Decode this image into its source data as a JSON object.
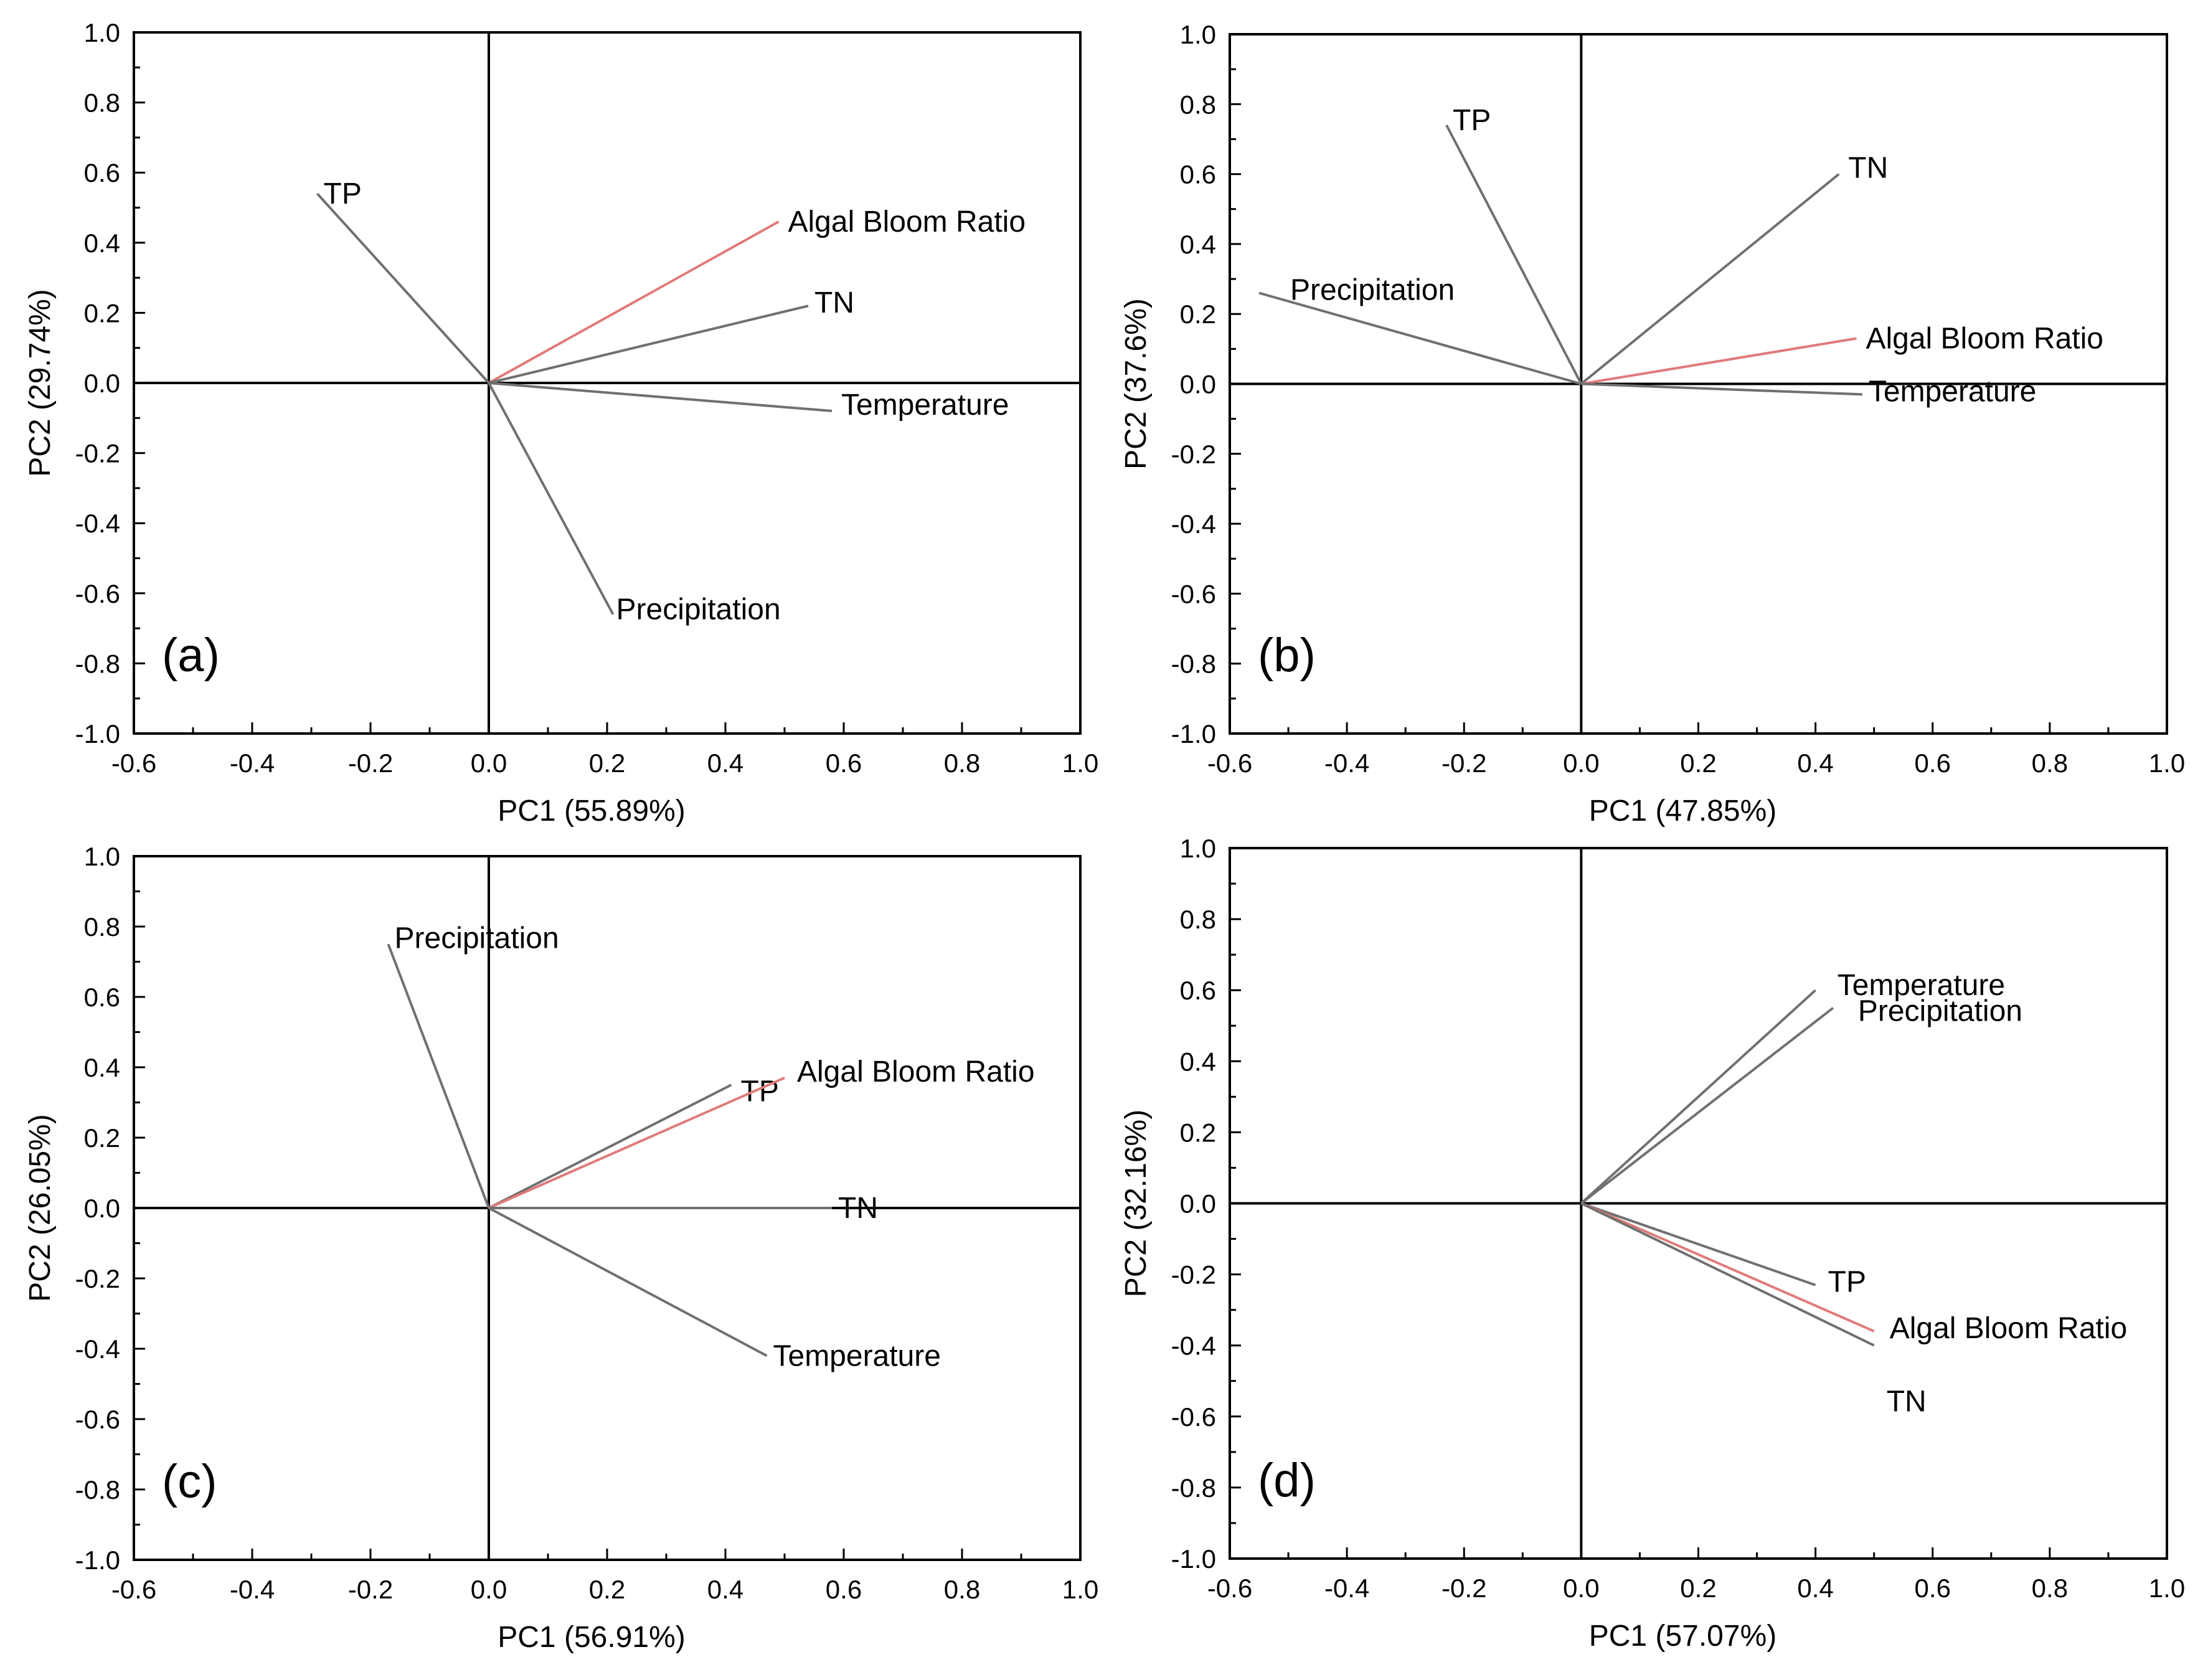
{
  "chart_data": [
    {
      "type": "scatter",
      "panel": "(a)",
      "xlabel": "PC1 (55.89%)",
      "ylabel": "PC2 (29.74%)",
      "xlim": [
        -0.6,
        1.0
      ],
      "ylim": [
        -1.0,
        1.0
      ],
      "xticks": [
        "-0.6",
        "-0.4",
        "-0.2",
        "0.0",
        "0.2",
        "0.4",
        "0.6",
        "0.8",
        "1.0"
      ],
      "yticks": [
        "1.0",
        "0.8",
        "0.6",
        "0.4",
        "0.2",
        "0.0",
        "-0.2",
        "-0.4",
        "-0.6",
        "-0.8",
        "-1.0"
      ],
      "vectors": [
        {
          "name": "TP",
          "x": -0.29,
          "y": 0.54,
          "color": "#707070"
        },
        {
          "name": "Algal Bloom Ratio",
          "x": 0.49,
          "y": 0.46,
          "color": "#e07a7a"
        },
        {
          "name": "TN",
          "x": 0.54,
          "y": 0.22,
          "color": "#707070"
        },
        {
          "name": "Temperature",
          "x": 0.58,
          "y": -0.08,
          "color": "#707070"
        },
        {
          "name": "Precipitation",
          "x": 0.21,
          "y": -0.66,
          "color": "#707070"
        }
      ]
    },
    {
      "type": "scatter",
      "panel": "(b)",
      "xlabel": "PC1 (47.85%)",
      "ylabel": "PC2 (37.6%)",
      "xlim": [
        -0.6,
        1.0
      ],
      "ylim": [
        -1.0,
        1.0
      ],
      "xticks": [
        "-0.6",
        "-0.4",
        "-0.2",
        "0.0",
        "0.2",
        "0.4",
        "0.6",
        "0.8",
        "1.0"
      ],
      "yticks": [
        "1.0",
        "0.8",
        "0.6",
        "0.4",
        "0.2",
        "0.0",
        "-0.2",
        "-0.4",
        "-0.6",
        "-0.8",
        "-1.0"
      ],
      "vectors": [
        {
          "name": "TP",
          "x": -0.23,
          "y": 0.74,
          "color": "#707070"
        },
        {
          "name": "TN",
          "x": 0.44,
          "y": 0.6,
          "color": "#707070"
        },
        {
          "name": "Precipitation",
          "x": -0.55,
          "y": 0.26,
          "color": "#707070"
        },
        {
          "name": "Algal Bloom Ratio",
          "x": 0.47,
          "y": 0.13,
          "color": "#e07a7a"
        },
        {
          "name": "Temperature",
          "x": 0.48,
          "y": -0.03,
          "color": "#707070"
        }
      ]
    },
    {
      "type": "scatter",
      "panel": "(c)",
      "xlabel": "PC1 (56.91%)",
      "ylabel": "PC2 (26.05%)",
      "xlim": [
        -0.6,
        1.0
      ],
      "ylim": [
        -1.0,
        1.0
      ],
      "xticks": [
        "-0.6",
        "-0.4",
        "-0.2",
        "0.0",
        "0.2",
        "0.4",
        "0.6",
        "0.8",
        "1.0"
      ],
      "yticks": [
        "1.0",
        "0.8",
        "0.6",
        "0.4",
        "0.2",
        "0.0",
        "-0.2",
        "-0.4",
        "-0.6",
        "-0.8",
        "-1.0"
      ],
      "vectors": [
        {
          "name": "Precipitation",
          "x": -0.17,
          "y": 0.75,
          "color": "#707070"
        },
        {
          "name": "TP",
          "x": 0.41,
          "y": 0.35,
          "color": "#707070"
        },
        {
          "name": "Algal Bloom Ratio",
          "x": 0.5,
          "y": 0.37,
          "color": "#e07a7a"
        },
        {
          "name": "TN",
          "x": 0.58,
          "y": 0.0,
          "color": "#707070"
        },
        {
          "name": "Temperature",
          "x": 0.47,
          "y": -0.42,
          "color": "#707070"
        }
      ]
    },
    {
      "type": "scatter",
      "panel": "(d)",
      "xlabel": "PC1 (57.07%)",
      "ylabel": "PC2 (32.16%)",
      "xlim": [
        -0.6,
        1.0
      ],
      "ylim": [
        -1.0,
        1.0
      ],
      "xticks": [
        "-0.6",
        "-0.4",
        "-0.2",
        "0.0",
        "0.2",
        "0.4",
        "0.6",
        "0.8",
        "1.0"
      ],
      "yticks": [
        "1.0",
        "0.8",
        "0.6",
        "0.4",
        "0.2",
        "0.0",
        "-0.2",
        "-0.4",
        "-0.6",
        "-0.8",
        "-1.0"
      ],
      "vectors": [
        {
          "name": "Temperature",
          "x": 0.4,
          "y": 0.6,
          "color": "#707070"
        },
        {
          "name": "Precipitation",
          "x": 0.43,
          "y": 0.55,
          "color": "#707070"
        },
        {
          "name": "TP",
          "x": 0.4,
          "y": -0.23,
          "color": "#707070"
        },
        {
          "name": "Algal Bloom Ratio",
          "x": 0.5,
          "y": -0.36,
          "color": "#e07a7a"
        },
        {
          "name": "TN",
          "x": 0.5,
          "y": -0.4,
          "color": "#707070"
        }
      ]
    }
  ]
}
